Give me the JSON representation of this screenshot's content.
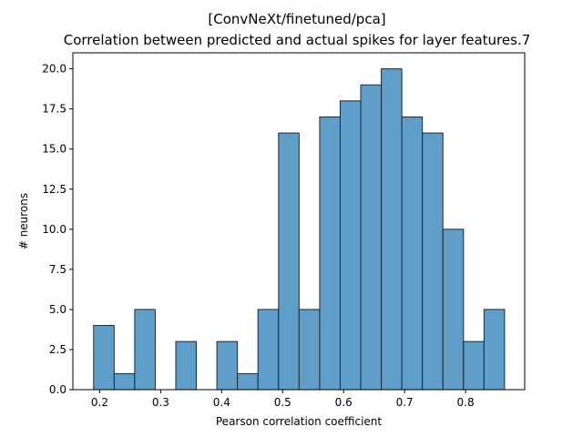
{
  "chart_data": {
    "type": "bar",
    "title_line1": "[ConvNeXt/finetuned/pca]",
    "title_line2": "Correlation between predicted and actual spikes for layer features.7",
    "xlabel": "Pearson correlation coefficient",
    "ylabel": "# neurons",
    "xlim": [
      0.156,
      0.897
    ],
    "ylim": [
      0,
      21
    ],
    "xticks": [
      0.2,
      0.3,
      0.4,
      0.5,
      0.6,
      0.7,
      0.8
    ],
    "xtick_labels": [
      "0.2",
      "0.3",
      "0.4",
      "0.5",
      "0.6",
      "0.7",
      "0.8"
    ],
    "yticks": [
      0,
      2.5,
      5,
      7.5,
      10,
      12.5,
      15,
      17.5,
      20
    ],
    "ytick_labels": [
      "0.0",
      "2.5",
      "5.0",
      "7.5",
      "10.0",
      "12.5",
      "15.0",
      "17.5",
      "20.0"
    ],
    "bar_color": "#5f9ec9",
    "edge_color": "#1a2a36",
    "bin_edges": [
      0.19,
      0.2237,
      0.2574,
      0.2911,
      0.3248,
      0.3585,
      0.3922,
      0.4259,
      0.4596,
      0.4933,
      0.527,
      0.5607,
      0.5944,
      0.6281,
      0.6618,
      0.6955,
      0.7292,
      0.7629,
      0.7966,
      0.8303,
      0.864
    ],
    "counts": [
      4,
      1,
      5,
      0,
      3,
      0,
      3,
      1,
      5,
      16,
      5,
      17,
      18,
      19,
      20,
      17,
      16,
      10,
      3,
      5
    ]
  }
}
